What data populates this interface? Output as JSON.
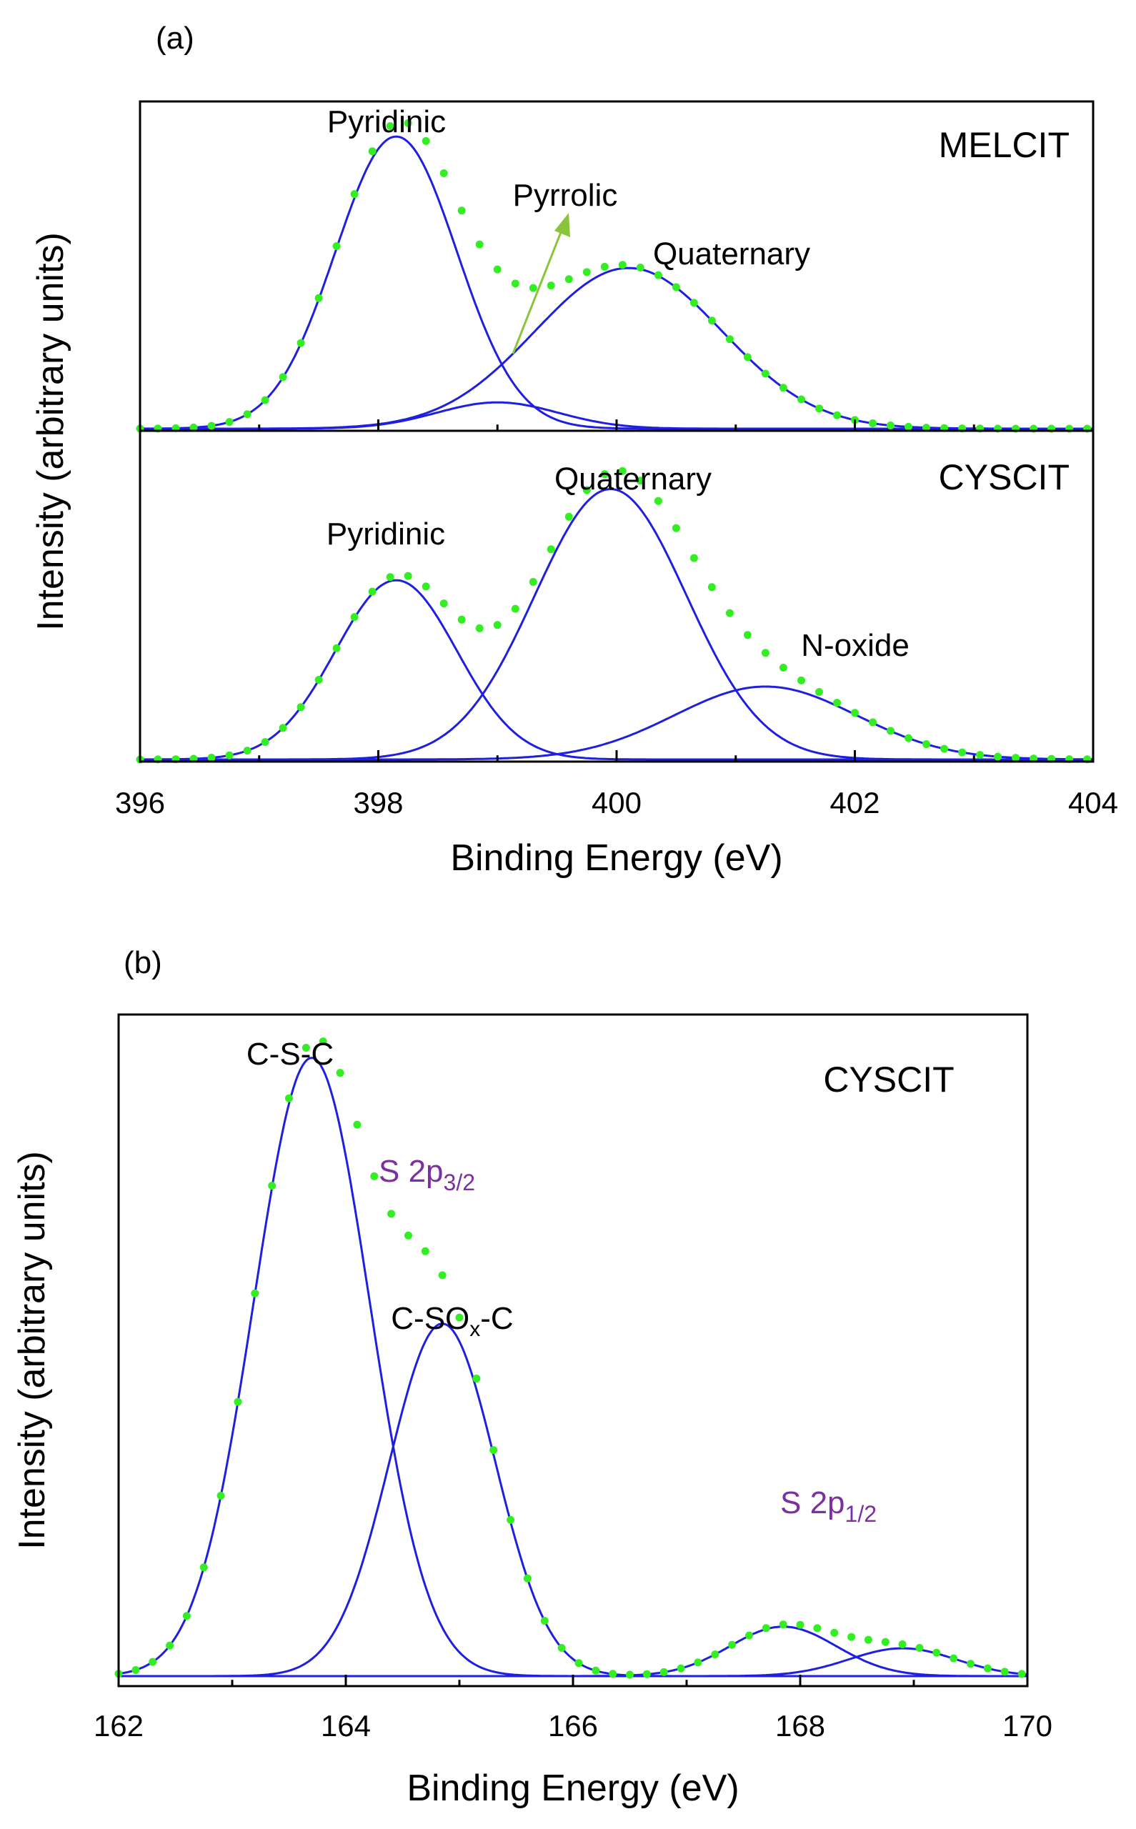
{
  "chart_data": [
    {
      "panel": "(a)",
      "type": "line",
      "xlabel": "Binding Energy (eV)",
      "ylabel": "Intensity (arbitrary units)",
      "xlim": [
        396,
        404
      ],
      "xticks": [
        "396",
        "398",
        "400",
        "402",
        "404"
      ],
      "grid": false,
      "colors": {
        "component": "#1f1fe0",
        "envelope": "#33ee22",
        "arrow": "#8ac43a"
      },
      "subplots": [
        {
          "sample": "MELCIT",
          "components": [
            {
              "name": "Pyridinic",
              "center": 398.15,
              "height": 1.0,
              "fwhm": 1.2
            },
            {
              "name": "Pyrrolic",
              "center": 399.0,
              "height": 0.09,
              "fwhm": 1.2
            },
            {
              "name": "Quaternary",
              "center": 400.1,
              "height": 0.55,
              "fwhm": 1.85
            }
          ],
          "annotations": [
            "Pyridinic",
            "Pyrrolic",
            "Quaternary"
          ],
          "ylim": [
            0,
            1.12
          ]
        },
        {
          "sample": "CYSCIT",
          "components": [
            {
              "name": "Pyridinic",
              "center": 398.15,
              "height": 0.59,
              "fwhm": 1.2
            },
            {
              "name": "Quaternary",
              "center": 399.95,
              "height": 0.89,
              "fwhm": 1.5
            },
            {
              "name": "N-oxide",
              "center": 401.25,
              "height": 0.24,
              "fwhm": 1.8
            }
          ],
          "annotations": [
            "Pyridinic",
            "Quaternary",
            "N-oxide"
          ],
          "ylim": [
            0,
            1.07
          ]
        }
      ]
    },
    {
      "panel": "(b)",
      "type": "line",
      "sample": "CYSCIT",
      "xlabel": "Binding Energy (eV)",
      "ylabel": "Intensity (arbitrary units)",
      "xlim": [
        162,
        170
      ],
      "xticks": [
        "162",
        "164",
        "166",
        "168",
        "170"
      ],
      "grid": false,
      "colors": {
        "component": "#1f1fe0",
        "envelope": "#33ee22",
        "label_purple": "#7b2fa0"
      },
      "components": [
        {
          "name": "C-S-C",
          "center": 163.7,
          "height": 1.0,
          "fwhm": 1.2
        },
        {
          "name": "C-SOx-C",
          "center": 164.85,
          "height": 0.57,
          "fwhm": 1.1
        },
        {
          "name": "S 2p1/2 a",
          "center": 167.85,
          "height": 0.08,
          "fwhm": 1.1
        },
        {
          "name": "S 2p1/2 b",
          "center": 168.9,
          "height": 0.045,
          "fwhm": 1.1
        }
      ],
      "annotations": {
        "csc": "C-S-C",
        "csox_a": "C-SO",
        "csox_sub": "x",
        "csox_b": "-C",
        "s32_main": "S 2p",
        "s32_sub": "3/2",
        "s12_main": "S 2p",
        "s12_sub": "1/2"
      },
      "ylim": [
        0,
        1.07
      ]
    }
  ]
}
